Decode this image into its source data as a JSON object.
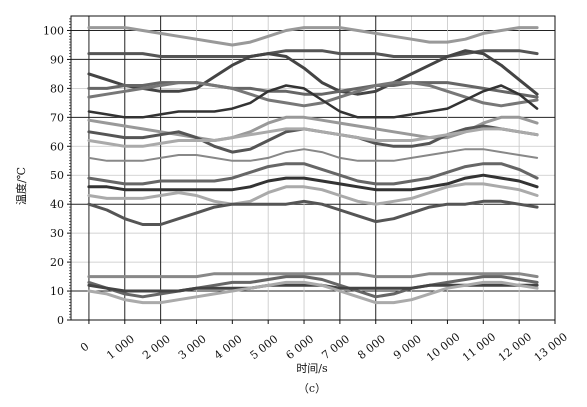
{
  "chart_data": {
    "type": "line",
    "title": "",
    "xlabel": "时间/s",
    "ylabel": "温度/℃",
    "caption": "（c）",
    "xlim": [
      -500,
      13000
    ],
    "ylim": [
      0,
      105
    ],
    "xticks": [
      0,
      1000,
      2000,
      3000,
      4000,
      5000,
      6000,
      7000,
      8000,
      9000,
      10000,
      11000,
      12000,
      13000
    ],
    "xtick_labels": [
      "0",
      "1 000",
      "2 000",
      "3 000",
      "4 000",
      "5 000",
      "6 000",
      "7 000",
      "8 000",
      "9 000",
      "10 000",
      "11 000",
      "12 000",
      "13 000"
    ],
    "yticks": [
      0,
      10,
      20,
      30,
      40,
      50,
      60,
      70,
      80,
      90,
      100
    ],
    "ytick_labels": [
      "0",
      "10",
      "20",
      "30",
      "40",
      "50",
      "60",
      "70",
      "80",
      "90",
      "100"
    ],
    "grid": true,
    "legend": "none",
    "x": [
      0,
      500,
      1000,
      1500,
      2000,
      2500,
      3000,
      3500,
      4000,
      4500,
      5000,
      5500,
      6000,
      6500,
      7000,
      7500,
      8000,
      8500,
      9000,
      9500,
      10000,
      10500,
      11000,
      11500,
      12000,
      12500
    ],
    "series": [
      {
        "color": "#999999",
        "width": 3,
        "values": [
          101,
          101,
          101,
          100,
          99,
          98,
          97,
          96,
          95,
          96,
          98,
          100,
          101,
          101,
          101,
          100,
          99,
          98,
          97,
          96,
          96,
          97,
          99,
          100,
          101,
          101
        ]
      },
      {
        "color": "#555555",
        "width": 3,
        "values": [
          92,
          92,
          92,
          92,
          91,
          91,
          91,
          91,
          91,
          91,
          92,
          93,
          93,
          93,
          92,
          92,
          92,
          91,
          91,
          91,
          91,
          92,
          93,
          93,
          93,
          92
        ]
      },
      {
        "color": "#444444",
        "width": 3,
        "values": [
          85,
          83,
          81,
          80,
          79,
          79,
          80,
          84,
          88,
          91,
          92,
          91,
          87,
          82,
          79,
          78,
          79,
          82,
          85,
          88,
          91,
          93,
          92,
          88,
          83,
          78
        ]
      },
      {
        "color": "#666666",
        "width": 3,
        "values": [
          80,
          80,
          81,
          81,
          82,
          82,
          82,
          81,
          80,
          80,
          79,
          79,
          78,
          78,
          79,
          80,
          81,
          81,
          82,
          82,
          82,
          81,
          80,
          79,
          78,
          77
        ]
      },
      {
        "color": "#777777",
        "width": 3,
        "values": [
          77,
          78,
          79,
          80,
          81,
          82,
          82,
          81,
          80,
          78,
          76,
          75,
          74,
          75,
          77,
          79,
          81,
          82,
          82,
          81,
          79,
          77,
          75,
          74,
          75,
          76
        ]
      },
      {
        "color": "#333333",
        "width": 2.5,
        "values": [
          72,
          71,
          70,
          70,
          71,
          72,
          72,
          72,
          73,
          75,
          79,
          81,
          80,
          76,
          72,
          70,
          70,
          70,
          71,
          72,
          73,
          76,
          79,
          81,
          78,
          73
        ]
      },
      {
        "color": "#999999",
        "width": 3,
        "values": [
          69,
          68,
          67,
          66,
          65,
          64,
          63,
          62,
          63,
          65,
          68,
          70,
          70,
          69,
          68,
          67,
          66,
          65,
          64,
          63,
          63,
          65,
          68,
          70,
          70,
          68
        ]
      },
      {
        "color": "#555555",
        "width": 3,
        "values": [
          65,
          64,
          63,
          63,
          64,
          65,
          63,
          60,
          58,
          59,
          62,
          65,
          66,
          65,
          64,
          63,
          61,
          60,
          60,
          61,
          64,
          66,
          67,
          66,
          65,
          64
        ]
      },
      {
        "color": "#aaaaaa",
        "width": 3,
        "values": [
          62,
          61,
          60,
          60,
          61,
          62,
          62,
          62,
          63,
          64,
          65,
          66,
          66,
          65,
          64,
          63,
          62,
          62,
          62,
          63,
          64,
          65,
          66,
          66,
          65,
          64
        ]
      },
      {
        "color": "#888888",
        "width": 2,
        "values": [
          56,
          55,
          55,
          55,
          56,
          57,
          57,
          56,
          55,
          55,
          56,
          58,
          59,
          58,
          56,
          55,
          55,
          55,
          56,
          57,
          58,
          59,
          59,
          58,
          57,
          56
        ]
      },
      {
        "color": "#666666",
        "width": 3,
        "values": [
          49,
          48,
          47,
          47,
          48,
          48,
          48,
          48,
          49,
          51,
          53,
          54,
          54,
          52,
          50,
          48,
          47,
          47,
          48,
          49,
          51,
          53,
          54,
          54,
          52,
          49
        ]
      },
      {
        "color": "#333333",
        "width": 3,
        "values": [
          46,
          46,
          45,
          45,
          45,
          45,
          45,
          45,
          45,
          46,
          48,
          49,
          49,
          48,
          47,
          46,
          45,
          45,
          45,
          46,
          47,
          49,
          50,
          49,
          48,
          46
        ]
      },
      {
        "color": "#aaaaaa",
        "width": 3,
        "values": [
          43,
          42,
          42,
          42,
          43,
          44,
          43,
          41,
          40,
          41,
          44,
          46,
          46,
          45,
          43,
          41,
          40,
          41,
          42,
          44,
          46,
          47,
          47,
          46,
          45,
          43
        ]
      },
      {
        "color": "#555555",
        "width": 3,
        "values": [
          40,
          38,
          35,
          33,
          33,
          35,
          37,
          39,
          40,
          40,
          40,
          40,
          41,
          40,
          38,
          36,
          34,
          35,
          37,
          39,
          40,
          40,
          41,
          41,
          40,
          39
        ]
      },
      {
        "color": "#888888",
        "width": 3,
        "values": [
          15,
          15,
          15,
          15,
          15,
          15,
          15,
          16,
          16,
          16,
          16,
          16,
          16,
          16,
          16,
          16,
          15,
          15,
          15,
          16,
          16,
          16,
          16,
          16,
          16,
          15
        ]
      },
      {
        "color": "#666666",
        "width": 3,
        "values": [
          13,
          11,
          9,
          8,
          9,
          10,
          11,
          12,
          13,
          13,
          14,
          15,
          15,
          14,
          12,
          10,
          8,
          9,
          11,
          12,
          13,
          14,
          15,
          15,
          14,
          13
        ]
      },
      {
        "color": "#444444",
        "width": 3,
        "values": [
          12,
          11,
          10,
          10,
          10,
          10,
          11,
          11,
          11,
          11,
          12,
          12,
          12,
          12,
          11,
          11,
          11,
          11,
          11,
          12,
          12,
          12,
          12,
          12,
          12,
          12
        ]
      },
      {
        "color": "#aaaaaa",
        "width": 3,
        "values": [
          10,
          9,
          7,
          6,
          6,
          7,
          8,
          9,
          10,
          11,
          12,
          13,
          13,
          12,
          10,
          8,
          6,
          6,
          7,
          9,
          11,
          12,
          13,
          13,
          12,
          11
        ]
      }
    ]
  }
}
